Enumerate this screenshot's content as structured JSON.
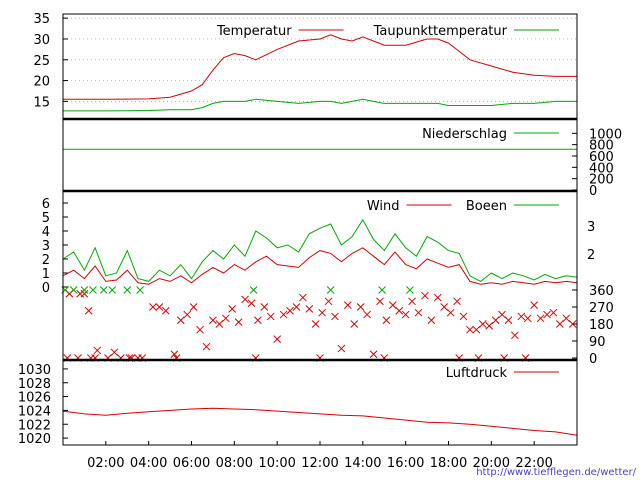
{
  "colors": {
    "red": "#dd0000",
    "green": "#00aa00",
    "grid": "#9a9a9a",
    "axis": "#000000"
  },
  "footer": {
    "url": "http://www.tiefflegen.de/wetter/"
  },
  "x_axis": {
    "ticks": [
      "02:00",
      "04:00",
      "06:00",
      "08:00",
      "10:00",
      "12:00",
      "14:00",
      "16:00",
      "18:00",
      "20:00",
      "22:00"
    ]
  },
  "chart_data": [
    {
      "type": "line",
      "ylim": [
        11,
        36
      ],
      "yticks": [
        "15",
        "20",
        "25",
        "30",
        "35"
      ],
      "grid": true,
      "legend_position": "top-right",
      "x": [
        0,
        2,
        4,
        5,
        6,
        6.5,
        7,
        7.5,
        8,
        8.5,
        9,
        10,
        11,
        12,
        12.5,
        13,
        13.5,
        14,
        15,
        16,
        17,
        17.5,
        18,
        18.5,
        19,
        20,
        21,
        22,
        23,
        24
      ],
      "series": [
        {
          "name": "Temperatur",
          "color": "#dd0000",
          "values": [
            15.5,
            15.5,
            15.6,
            16.0,
            17.5,
            19.0,
            22.5,
            25.5,
            26.5,
            26.0,
            25.0,
            27.5,
            29.5,
            30.0,
            31.0,
            30.0,
            29.5,
            30.5,
            28.5,
            28.5,
            30.0,
            30.0,
            29.0,
            27.0,
            25.0,
            23.5,
            22.0,
            21.3,
            21.0,
            21.0
          ]
        },
        {
          "name": "Taupunkttemperatur",
          "color": "#00aa00",
          "values": [
            12.7,
            12.7,
            12.8,
            13.0,
            13.0,
            13.5,
            14.5,
            15.0,
            15.0,
            15.0,
            15.5,
            15.0,
            14.5,
            15.0,
            15.0,
            14.5,
            15.0,
            15.5,
            14.5,
            14.5,
            14.5,
            14.5,
            14.0,
            14.0,
            14.0,
            14.0,
            14.5,
            14.5,
            15.0,
            15.0
          ]
        }
      ]
    },
    {
      "type": "line",
      "ylim": [
        0,
        1200
      ],
      "yticks": [
        "1000",
        "800",
        "600",
        "400",
        "200",
        "0"
      ],
      "legend_position": "top-right",
      "series": [
        {
          "name": "Niederschlag",
          "color": "#00aa00",
          "x": [
            0,
            24
          ],
          "values": [
            720,
            720
          ]
        }
      ]
    },
    {
      "type": "line",
      "ylim": [
        0,
        6.5
      ],
      "yticks": [
        "0",
        "1",
        "2",
        "3",
        "4",
        "5",
        "6"
      ],
      "y2ticks": [
        "3",
        "2"
      ],
      "legend_position": "top-right",
      "x": [
        0,
        0.5,
        1,
        1.5,
        2,
        2.5,
        3,
        3.5,
        4,
        4.5,
        5,
        5.5,
        6,
        6.5,
        7,
        7.5,
        8,
        8.5,
        9,
        9.5,
        10,
        10.5,
        11,
        11.5,
        12,
        12.5,
        13,
        13.5,
        14,
        14.5,
        15,
        15.5,
        16,
        16.5,
        17,
        17.5,
        18,
        18.5,
        19,
        19.5,
        20,
        20.5,
        21,
        21.5,
        22,
        22.5,
        23,
        23.5,
        24
      ],
      "series": [
        {
          "name": "Wind",
          "color": "#dd0000",
          "values": [
            0.8,
            1.2,
            0.6,
            1.5,
            0.4,
            0.5,
            1.2,
            0.3,
            0.2,
            0.6,
            0.4,
            0.8,
            0.3,
            0.9,
            1.4,
            1.0,
            1.6,
            1.2,
            1.8,
            2.2,
            1.6,
            1.5,
            1.4,
            2.1,
            2.6,
            2.4,
            1.8,
            2.4,
            2.8,
            2.2,
            1.6,
            2.5,
            1.6,
            1.3,
            2.0,
            1.7,
            1.4,
            1.6,
            0.4,
            0.2,
            0.3,
            0.2,
            0.4,
            0.3,
            0.2,
            0.4,
            0.3,
            0.4,
            0.3
          ]
        },
        {
          "name": "Boeen",
          "color": "#00aa00",
          "values": [
            2.0,
            2.5,
            1.2,
            2.8,
            0.8,
            1.0,
            2.6,
            0.6,
            0.4,
            1.2,
            0.8,
            1.6,
            0.6,
            1.8,
            2.6,
            2.0,
            3.0,
            2.2,
            4.0,
            3.5,
            2.8,
            3.0,
            2.5,
            3.8,
            4.2,
            4.5,
            3.0,
            3.6,
            4.8,
            3.4,
            2.6,
            3.8,
            2.8,
            2.2,
            3.6,
            3.2,
            2.6,
            2.4,
            0.8,
            0.4,
            1.0,
            0.6,
            1.0,
            0.8,
            0.5,
            0.9,
            0.6,
            0.8,
            0.7
          ]
        }
      ]
    },
    {
      "type": "scatter",
      "ylim": [
        0,
        360
      ],
      "yticks": [
        "360",
        "270",
        "180",
        "90",
        "0"
      ],
      "series": [
        {
          "name": "",
          "color": "#dd0000",
          "x": [
            0.3,
            0.8,
            1.2,
            1.6,
            2.1,
            1.0,
            1.5,
            2.4,
            3.1,
            3.5,
            4.2,
            4.5,
            4.8,
            5.2,
            5.5,
            5.8,
            6.1,
            6.4,
            6.7,
            7.0,
            7.3,
            7.6,
            7.9,
            8.2,
            8.5,
            8.8,
            9.1,
            9.4,
            9.7,
            10.0,
            10.3,
            10.6,
            10.9,
            11.2,
            11.5,
            11.8,
            12.1,
            12.4,
            12.7,
            13.0,
            13.3,
            13.6,
            13.9,
            14.2,
            14.5,
            14.8,
            15.1,
            15.4,
            15.7,
            16.0,
            16.3,
            16.6,
            16.9,
            17.2,
            17.5,
            17.8,
            18.1,
            18.4,
            18.7,
            19.0,
            19.3,
            19.6,
            19.9,
            20.2,
            20.5,
            20.8,
            21.1,
            21.4,
            21.7,
            22.0,
            22.3,
            22.6,
            22.9,
            23.2,
            23.5,
            23.8,
            0.2,
            0.7,
            1.3,
            2.7,
            3.2,
            3.7,
            5.3,
            9.0,
            12.0,
            15.0,
            18.5,
            19.4,
            20.6,
            21.6
          ],
          "y": [
            340,
            340,
            250,
            40,
            0,
            340,
            0,
            30,
            0,
            0,
            270,
            270,
            250,
            20,
            200,
            230,
            270,
            150,
            60,
            200,
            180,
            210,
            260,
            190,
            310,
            290,
            200,
            270,
            220,
            100,
            230,
            250,
            270,
            320,
            260,
            180,
            240,
            300,
            220,
            50,
            280,
            180,
            270,
            230,
            20,
            300,
            200,
            280,
            250,
            230,
            300,
            240,
            330,
            200,
            320,
            270,
            240,
            300,
            220,
            150,
            150,
            180,
            170,
            200,
            230,
            200,
            120,
            220,
            210,
            280,
            210,
            230,
            240,
            180,
            210,
            180,
            0,
            0,
            0,
            0,
            0,
            0,
            0,
            0,
            0,
            0,
            0,
            0,
            0,
            0
          ]
        },
        {
          "name": "",
          "color": "#00aa00",
          "x": [
            0.1,
            0.5,
            1.0,
            1.4,
            1.9,
            2.3,
            3.0,
            3.6,
            8.9,
            12.5,
            14.9,
            16.2
          ],
          "y": [
            360,
            360,
            360,
            360,
            360,
            360,
            360,
            360,
            360,
            360,
            360,
            360
          ]
        }
      ]
    },
    {
      "type": "line",
      "ylim": [
        1019,
        1031
      ],
      "yticks": [
        "1030",
        "1028",
        "1026",
        "1024",
        "1022",
        "1020"
      ],
      "legend_position": "top-right",
      "x": [
        0,
        1,
        2,
        3,
        4,
        5,
        6,
        7,
        8,
        9,
        10,
        11,
        12,
        13,
        14,
        15,
        16,
        17,
        18,
        19,
        20,
        21,
        22,
        23,
        24
      ],
      "series": [
        {
          "name": "Luftdruck",
          "color": "#dd0000",
          "values": [
            1023.9,
            1023.5,
            1023.3,
            1023.6,
            1023.8,
            1024.0,
            1024.2,
            1024.3,
            1024.2,
            1024.1,
            1023.9,
            1023.7,
            1023.5,
            1023.3,
            1023.2,
            1022.9,
            1022.6,
            1022.3,
            1022.2,
            1022.0,
            1021.7,
            1021.4,
            1021.1,
            1020.9,
            1020.4
          ]
        }
      ]
    }
  ]
}
